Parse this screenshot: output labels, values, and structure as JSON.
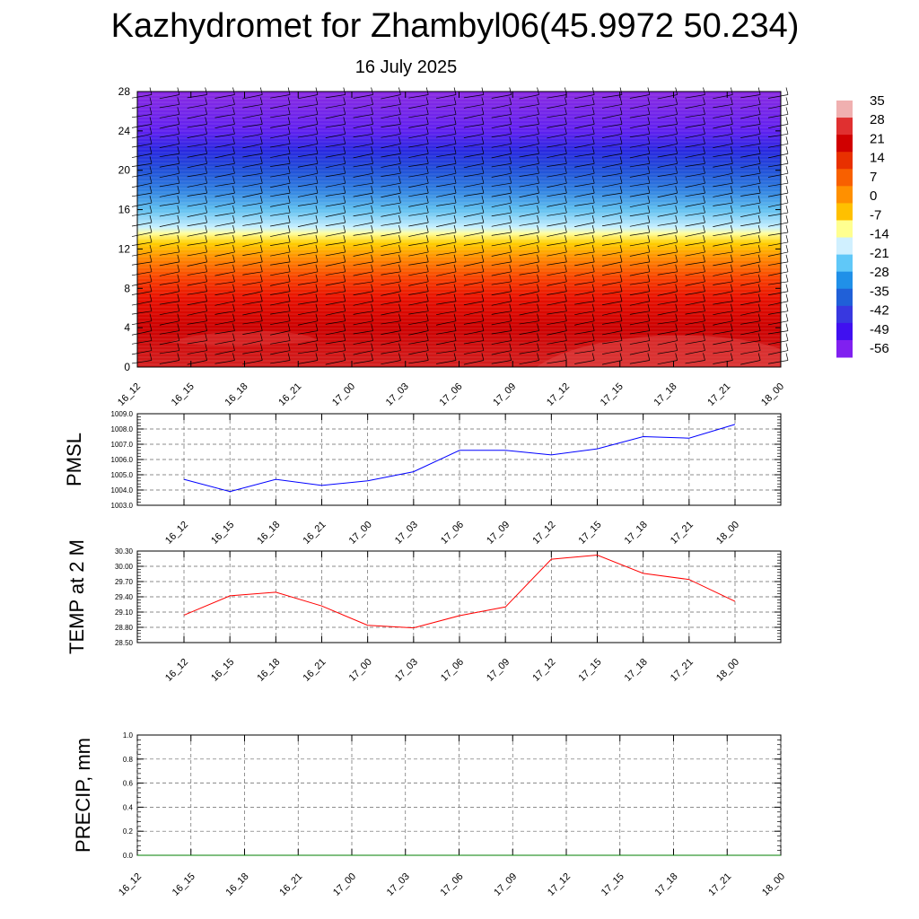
{
  "title": "Kazhydromet for Zhambyl06(45.9972 50.234)",
  "subtitle": "16 July 2025",
  "colors": {
    "pmsl_line": "#0000ff",
    "temp_line": "#ff0000",
    "precip_line": "#007f00",
    "grid": "#666666"
  },
  "chart_data": [
    {
      "type": "heatmap",
      "panel": "vertical-section",
      "x_tick_labels": [
        "16_12",
        "16_15",
        "16_18",
        "16_21",
        "17_00",
        "17_03",
        "17_06",
        "17_09",
        "17_12",
        "17_15",
        "17_18",
        "17_21",
        "18_00"
      ],
      "y_tick_labels": [
        "0",
        "4",
        "8",
        "12",
        "16",
        "20",
        "24",
        "28"
      ],
      "ylim": [
        0,
        28
      ],
      "colorbar_labels": [
        "35",
        "28",
        "21",
        "14",
        "7",
        "0",
        "-7",
        "-14",
        "-21",
        "-28",
        "-35",
        "-42",
        "-49",
        "-56"
      ],
      "colorbar_colors": [
        "#f0b0b0",
        "#e03030",
        "#d00000",
        "#e83000",
        "#f86000",
        "#ff9000",
        "#ffc000",
        "#ffff90",
        "#d0f0ff",
        "#60c8f8",
        "#2090e8",
        "#2060d8",
        "#3838e0",
        "#4010f0",
        "#8020f0"
      ],
      "field_levels": [
        {
          "y": 0,
          "color": "#d42020"
        },
        {
          "y": 4,
          "color": "#cc0000"
        },
        {
          "y": 7,
          "color": "#e81000"
        },
        {
          "y": 9,
          "color": "#f84000"
        },
        {
          "y": 11,
          "color": "#ff8800"
        },
        {
          "y": 12.6,
          "color": "#ffd000"
        },
        {
          "y": 13.6,
          "color": "#ffffa0"
        },
        {
          "y": 14.2,
          "color": "#c8f0ff"
        },
        {
          "y": 16,
          "color": "#60c0f0"
        },
        {
          "y": 18,
          "color": "#3080e0"
        },
        {
          "y": 20,
          "color": "#2050d8"
        },
        {
          "y": 22,
          "color": "#2828e0"
        },
        {
          "y": 24,
          "color": "#6020f0"
        },
        {
          "y": 28,
          "color": "#8a2be2"
        }
      ]
    },
    {
      "type": "line",
      "panel": "pmsl",
      "ylabel": "PMSL",
      "x": [
        "16_12",
        "16_15",
        "16_18",
        "16_21",
        "17_00",
        "17_03",
        "17_06",
        "17_09",
        "17_12",
        "17_15",
        "17_18",
        "17_21",
        "18_00"
      ],
      "y": [
        1004.7,
        1003.9,
        1004.7,
        1004.3,
        1004.6,
        1005.2,
        1006.6,
        1006.6,
        1006.3,
        1006.7,
        1007.5,
        1007.4,
        1008.3
      ],
      "ylim": [
        1003.0,
        1009.0
      ],
      "y_tick_labels": [
        "1003.0",
        "1004.0",
        "1005.0",
        "1006.0",
        "1007.0",
        "1008.0",
        "1009.0"
      ],
      "color": "#0000ff"
    },
    {
      "type": "line",
      "panel": "temp",
      "ylabel": "TEMP at 2 M",
      "x": [
        "16_12",
        "16_15",
        "16_18",
        "16_21",
        "17_00",
        "17_03",
        "17_06",
        "17_09",
        "17_12",
        "17_15",
        "17_18",
        "17_21",
        "18_00"
      ],
      "y": [
        29.04,
        29.42,
        29.49,
        29.22,
        28.84,
        28.79,
        29.03,
        29.2,
        30.14,
        30.22,
        29.86,
        29.74,
        29.31
      ],
      "ylim": [
        28.5,
        30.3
      ],
      "y_tick_labels": [
        "28.50",
        "28.80",
        "29.10",
        "29.40",
        "29.70",
        "30.00",
        "30.30"
      ],
      "color": "#ff0000"
    },
    {
      "type": "line",
      "panel": "precip",
      "ylabel": "PRECIP, mm",
      "x_tick_labels": [
        "16_12",
        "16_15",
        "16_18",
        "16_21",
        "17_00",
        "17_03",
        "17_06",
        "17_09",
        "17_12",
        "17_15",
        "17_18",
        "17_21",
        "18_00"
      ],
      "y": [
        0,
        0,
        0,
        0,
        0,
        0,
        0,
        0,
        0,
        0,
        0,
        0,
        0
      ],
      "ylim": [
        0,
        1.0
      ],
      "y_tick_labels": [
        "0.0",
        "0.2",
        "0.4",
        "0.6",
        "0.8",
        "1.0"
      ],
      "color": "#007f00"
    }
  ]
}
